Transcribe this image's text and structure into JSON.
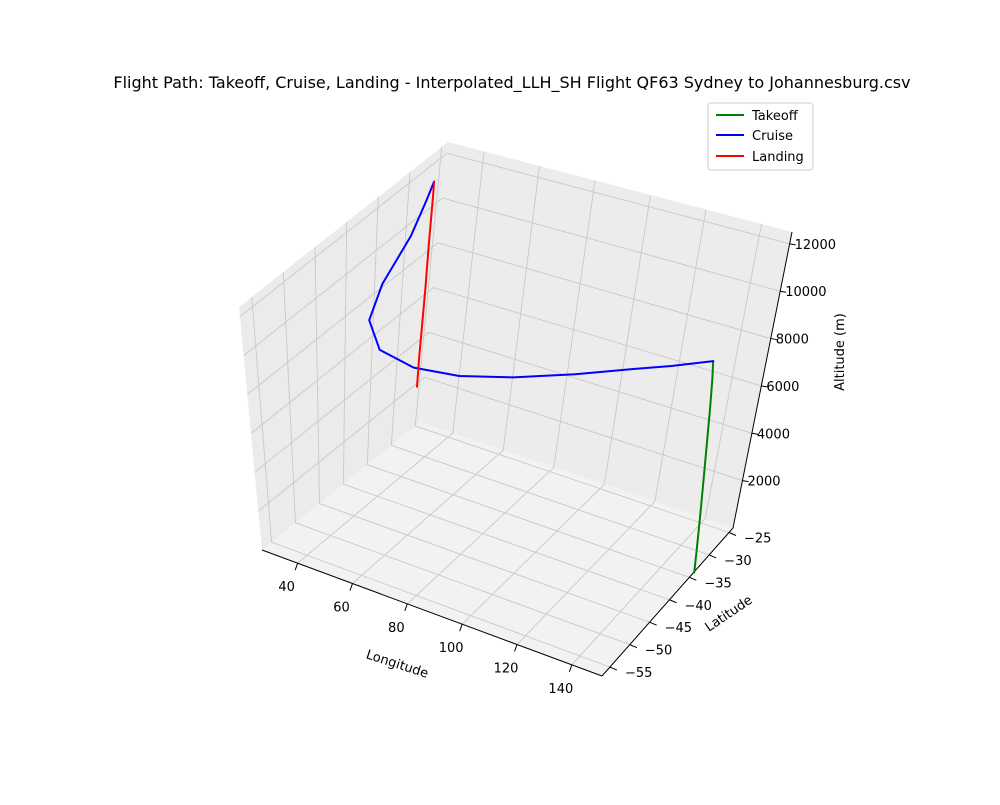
{
  "chart_data": {
    "type": "line",
    "projection": "3d",
    "title": "Flight Path: Takeoff, Cruise, Landing - Interpolated_LLH_SH Flight QF63 Sydney to Johannesburg.csv",
    "xlabel": "Longitude",
    "ylabel": "Latitude",
    "zlabel": "Altitude (m)",
    "xlim": [
      27,
      151
    ],
    "ylim": [
      -57,
      -24
    ],
    "zlim": [
      0,
      12500
    ],
    "xticks": [
      40,
      60,
      80,
      100,
      120,
      140
    ],
    "yticks": [
      -25,
      -30,
      -35,
      -40,
      -45,
      -50,
      -55
    ],
    "zticks": [
      2000,
      4000,
      6000,
      8000,
      10000,
      12000
    ],
    "grid": true,
    "legend": {
      "position": "top-right",
      "entries": [
        "Takeoff",
        "Cruise",
        "Landing"
      ]
    },
    "series": [
      {
        "name": "Takeoff",
        "color": "#008000",
        "points": [
          [
            151.2,
            -33.9,
            0
          ],
          [
            151.0,
            -33.95,
            1000
          ],
          [
            150.6,
            -34.0,
            2500
          ],
          [
            150.2,
            -34.1,
            4000
          ],
          [
            149.8,
            -34.2,
            5500
          ],
          [
            149.4,
            -34.3,
            7000
          ],
          [
            149.0,
            -34.4,
            8200
          ],
          [
            148.6,
            -34.5,
            9000
          ]
        ]
      },
      {
        "name": "Cruise",
        "color": "#0000ff",
        "points": [
          [
            148.6,
            -34.5,
            9000
          ],
          [
            140.0,
            -38.0,
            9200
          ],
          [
            132.0,
            -41.5,
            9500
          ],
          [
            120.0,
            -45.5,
            9700
          ],
          [
            105.0,
            -49.0,
            9800
          ],
          [
            90.0,
            -51.0,
            9800
          ],
          [
            75.0,
            -51.5,
            9800
          ],
          [
            60.0,
            -50.0,
            9800
          ],
          [
            48.0,
            -46.0,
            9900
          ],
          [
            40.0,
            -40.0,
            10000
          ],
          [
            35.0,
            -33.0,
            10500
          ],
          [
            30.5,
            -28.5,
            11000
          ],
          [
            28.3,
            -26.4,
            11300
          ]
        ]
      },
      {
        "name": "Landing",
        "color": "#ff0000",
        "points": [
          [
            28.3,
            -26.4,
            11300
          ],
          [
            28.2,
            -26.3,
            10700
          ],
          [
            28.2,
            -26.3,
            8500
          ],
          [
            28.2,
            -26.2,
            6500
          ],
          [
            28.2,
            -26.2,
            4500
          ],
          [
            28.2,
            -26.2,
            3300
          ],
          [
            28.2,
            -26.1,
            2000
          ]
        ]
      }
    ]
  }
}
